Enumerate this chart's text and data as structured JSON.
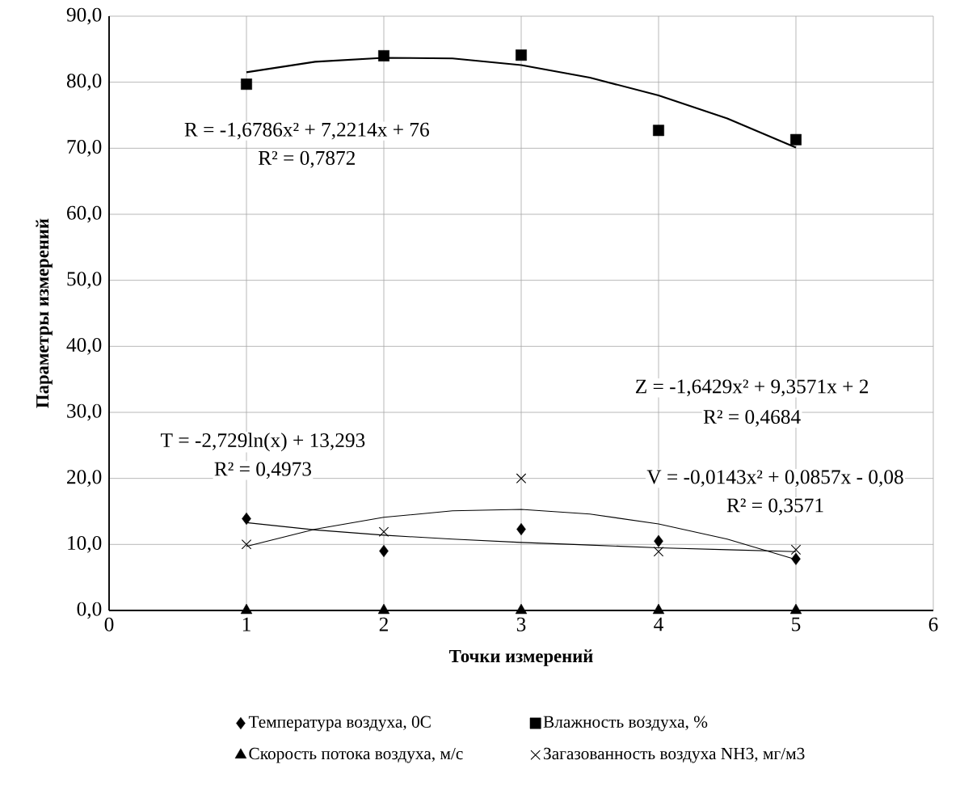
{
  "chart_data": {
    "type": "scatter",
    "xlabel": "Точки измерений",
    "ylabel": "Параметры измерений",
    "xlim": [
      0,
      6
    ],
    "xticks": [
      0,
      1,
      2,
      3,
      4,
      5,
      6
    ],
    "ylim": [
      0,
      90
    ],
    "yticks": [
      {
        "value": 0,
        "label": "0,0"
      },
      {
        "value": 10,
        "label": "10,0"
      },
      {
        "value": 20,
        "label": "20,0"
      },
      {
        "value": 30,
        "label": "30,0"
      },
      {
        "value": 40,
        "label": "40,0"
      },
      {
        "value": 50,
        "label": "50,0"
      },
      {
        "value": 60,
        "label": "60,0"
      },
      {
        "value": 70,
        "label": "70,0"
      },
      {
        "value": 80,
        "label": "80,0"
      },
      {
        "value": 90,
        "label": "90,0"
      }
    ],
    "grid": true,
    "legend": "bottom",
    "series": [
      {
        "name": "Температура воздуха, 0С",
        "marker": "diamond",
        "color": "#000000",
        "x": [
          1,
          2,
          3,
          4,
          5
        ],
        "values": [
          13.9,
          9.0,
          12.3,
          10.5,
          7.8
        ]
      },
      {
        "name": "Влажность воздуха, %",
        "marker": "square",
        "color": "#000000",
        "x": [
          1,
          2,
          3,
          4,
          5
        ],
        "values": [
          79.7,
          84.0,
          84.1,
          72.7,
          71.3
        ]
      },
      {
        "name": "Скорость потока воздуха, м/с",
        "marker": "triangle",
        "color": "#000000",
        "x": [
          1,
          2,
          3,
          4,
          5
        ],
        "values": [
          0,
          0,
          0,
          0,
          0
        ]
      },
      {
        "name": "Загазованность воздуха NH3, мг/м3",
        "marker": "cross",
        "color": "#000000",
        "x": [
          1,
          2,
          3,
          4,
          5
        ],
        "values": [
          10.0,
          11.9,
          20.0,
          8.9,
          9.2
        ]
      },
      {
        "type": "line",
        "marker": "none",
        "color": "#000000",
        "x": [
          1,
          1.5,
          2,
          2.5,
          3,
          3.5,
          4,
          4.5,
          5
        ],
        "values": [
          81.5,
          83.1,
          83.7,
          83.6,
          82.6,
          80.7,
          78.0,
          74.5,
          70.1
        ]
      },
      {
        "type": "line",
        "marker": "none",
        "color": "#000000",
        "x": [
          1,
          1.5,
          2,
          2.5,
          3,
          3.5,
          4,
          4.5,
          5
        ],
        "values": [
          13.3,
          12.2,
          11.4,
          10.8,
          10.3,
          9.9,
          9.5,
          9.2,
          8.9
        ]
      },
      {
        "type": "line",
        "marker": "none",
        "color": "#000000",
        "x": [
          1,
          1.5,
          2,
          2.5,
          3,
          3.5,
          4,
          4.5,
          5
        ],
        "values": [
          9.7,
          12.3,
          14.1,
          15.1,
          15.3,
          14.6,
          13.1,
          10.8,
          7.7
        ]
      }
    ],
    "annotations": [
      "R = -1,6786x² + 7,2214x + 76",
      "R² = 0,7872",
      "Z = -1,6429x² + 9,3571x + 2",
      "R² = 0,4684",
      "T = -2,729ln(x) + 13,293",
      "R² = 0,4973",
      "V = -0,0143x² + 0,0857x - 0,08",
      "R² = 0,3571"
    ]
  }
}
